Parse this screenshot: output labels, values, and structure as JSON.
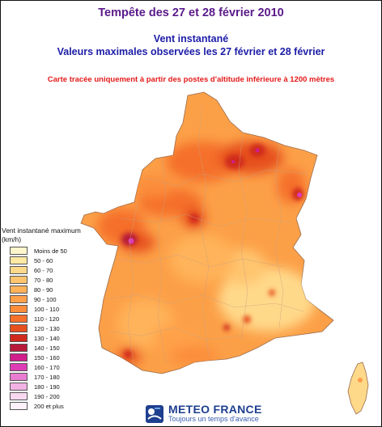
{
  "header": {
    "title": "Tempête des 27 et 28 février 2010",
    "subtitle_line1": "Vent instantané",
    "subtitle_line2": "Valeurs maximales observées les 27 février et 28 février",
    "note": "Carte tracée uniquement à partir des postes d'altitude inférieure à 1200 mètres"
  },
  "legend": {
    "title_line1": "Vent instantané maximum",
    "title_line2": "(km/h)",
    "items": [
      {
        "label": "Moins de 50",
        "color": "#fff7cc"
      },
      {
        "label": "50 - 60",
        "color": "#ffe9a3"
      },
      {
        "label": "60 - 70",
        "color": "#ffd98a"
      },
      {
        "label": "70 - 80",
        "color": "#ffc56e"
      },
      {
        "label": "80 - 90",
        "color": "#ffb35a"
      },
      {
        "label": "90 - 100",
        "color": "#ffa14a"
      },
      {
        "label": "100 - 110",
        "color": "#fc8d3a"
      },
      {
        "label": "110 - 120",
        "color": "#f5702a"
      },
      {
        "label": "120 - 130",
        "color": "#e6501e"
      },
      {
        "label": "130 - 140",
        "color": "#d02a1c"
      },
      {
        "label": "140 - 150",
        "color": "#b81a3a"
      },
      {
        "label": "150 - 160",
        "color": "#d01e8c"
      },
      {
        "label": "160 - 170",
        "color": "#dd3cb4"
      },
      {
        "label": "170 - 180",
        "color": "#e87cd0"
      },
      {
        "label": "180 - 190",
        "color": "#f2b2e4"
      },
      {
        "label": "190 - 200",
        "color": "#f8d8f0"
      },
      {
        "label": "200 et plus",
        "color": "#fdf2fb"
      }
    ]
  },
  "logo": {
    "name": "METEO FRANCE",
    "tagline": "Toujours un temps d'avance"
  },
  "colors": {
    "title": "#5a1a8a",
    "subtitle": "#1c1ca8",
    "note": "#e41a1a",
    "logo": "#1f3f8f"
  }
}
